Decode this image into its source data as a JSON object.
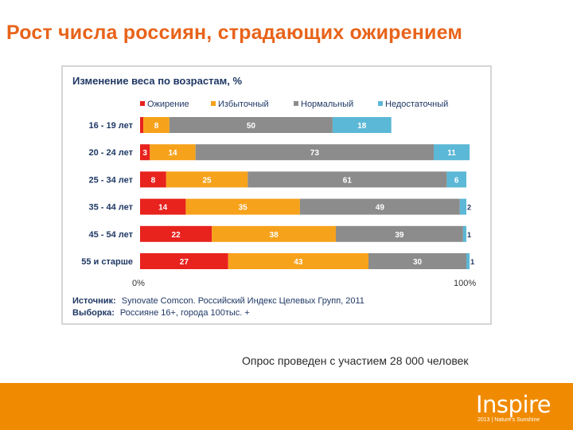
{
  "slide": {
    "title": "Рост числа россиян, страдающих ожирением",
    "note": "Опрос проведен с участием 28 000 человек"
  },
  "footer": {
    "color": "#f08a00",
    "logo_main": "Inspire",
    "logo_sub": "2013 | Nature's Sunshine"
  },
  "chart_data": {
    "type": "bar",
    "orientation": "horizontal",
    "stacked": true,
    "title": "Изменение веса по возрастам, %",
    "categories": [
      "16 - 19 лет",
      "20 - 24 лет",
      "25 - 34 лет",
      "35 - 44 лет",
      "45 - 54 лет",
      "55 и старше"
    ],
    "series": [
      {
        "name": "Ожирение",
        "color": "#e8221d",
        "values": [
          1,
          3,
          8,
          14,
          22,
          27
        ]
      },
      {
        "name": "Избыточный",
        "color": "#f7a21b",
        "values": [
          8,
          14,
          25,
          35,
          38,
          43
        ]
      },
      {
        "name": "Нормальный",
        "color": "#8c8c8c",
        "values": [
          50,
          73,
          61,
          49,
          39,
          30
        ]
      },
      {
        "name": "Недостаточный",
        "color": "#5bb8d6",
        "values": [
          18,
          11,
          6,
          2,
          1,
          1
        ]
      }
    ],
    "xlim": [
      0,
      100
    ],
    "x_tick_labels": [
      "0%",
      "100%"
    ],
    "legend_position": "top",
    "grid": false,
    "source_label": "Источник:",
    "source_text": "Synovate Comcon. Российский Индекс Целевых Групп, 2011",
    "sample_label": "Выборка:",
    "sample_text": "Россияне 16+, города 100тыс. +"
  }
}
